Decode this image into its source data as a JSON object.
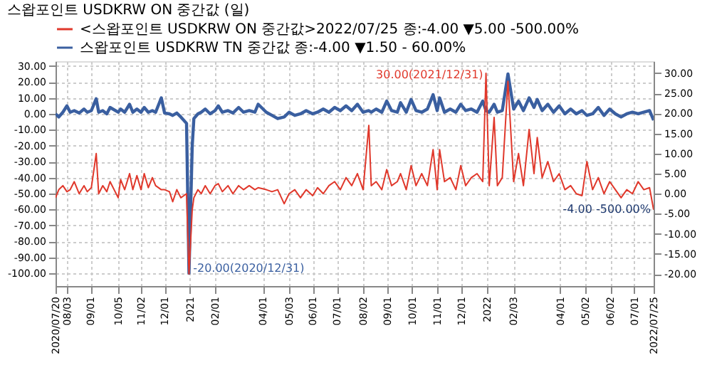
{
  "chart_data": {
    "type": "line",
    "title": "스왑포인트 USDKRW ON 중간값 (일)",
    "x": [
      "2020-07-20",
      "2020-07-24",
      "2020-07-29",
      "2020-08-03",
      "2020-08-07",
      "2020-08-12",
      "2020-08-18",
      "2020-08-24",
      "2020-08-28",
      "2020-09-02",
      "2020-09-08",
      "2020-09-11",
      "2020-09-16",
      "2020-09-21",
      "2020-09-25",
      "2020-10-05",
      "2020-10-08",
      "2020-10-13",
      "2020-10-19",
      "2020-10-23",
      "2020-10-28",
      "2020-11-02",
      "2020-11-06",
      "2020-11-11",
      "2020-11-16",
      "2020-11-20",
      "2020-11-27",
      "2020-12-01",
      "2020-12-07",
      "2020-12-11",
      "2020-12-16",
      "2020-12-21",
      "2020-12-28",
      "2020-12-31",
      "2021-01-04",
      "2021-01-06",
      "2021-01-11",
      "2021-01-15",
      "2021-01-20",
      "2021-01-26",
      "2021-02-01",
      "2021-02-05",
      "2021-02-10",
      "2021-02-17",
      "2021-02-23",
      "2021-03-02",
      "2021-03-08",
      "2021-03-15",
      "2021-03-22",
      "2021-03-26",
      "2021-04-05",
      "2021-04-12",
      "2021-04-19",
      "2021-04-27",
      "2021-05-03",
      "2021-05-10",
      "2021-05-17",
      "2021-05-24",
      "2021-06-01",
      "2021-06-07",
      "2021-06-14",
      "2021-06-21",
      "2021-06-28",
      "2021-07-05",
      "2021-07-12",
      "2021-07-19",
      "2021-07-26",
      "2021-08-02",
      "2021-08-09",
      "2021-08-12",
      "2021-08-18",
      "2021-08-25",
      "2021-08-31",
      "2021-09-06",
      "2021-09-13",
      "2021-09-17",
      "2021-09-24",
      "2021-09-30",
      "2021-10-06",
      "2021-10-13",
      "2021-10-20",
      "2021-10-27",
      "2021-11-01",
      "2021-11-04",
      "2021-11-10",
      "2021-11-17",
      "2021-11-24",
      "2021-11-30",
      "2021-12-06",
      "2021-12-13",
      "2021-12-20",
      "2021-12-27",
      "2021-12-31",
      "2022-01-04",
      "2022-01-10",
      "2022-01-14",
      "2022-01-20",
      "2022-01-27",
      "2022-02-03",
      "2022-02-09",
      "2022-02-15",
      "2022-02-22",
      "2022-02-28",
      "2022-03-04",
      "2022-03-10",
      "2022-03-17",
      "2022-03-24",
      "2022-03-31",
      "2022-04-07",
      "2022-04-14",
      "2022-04-21",
      "2022-04-28",
      "2022-05-04",
      "2022-05-11",
      "2022-05-18",
      "2022-05-25",
      "2022-06-01",
      "2022-06-08",
      "2022-06-15",
      "2022-06-22",
      "2022-06-29",
      "2022-07-06",
      "2022-07-13",
      "2022-07-20",
      "2022-07-25"
    ],
    "series": [
      {
        "name": "<스왑포인트 USDKRW ON 중간값>2022/07/25 종:-4.00 ▼5.00 -500.00%",
        "color": "#e0382b",
        "axis": "y2",
        "values": [
          -1,
          1,
          2,
          0.5,
          1,
          3,
          0,
          2,
          0.5,
          1.5,
          10,
          0,
          2,
          0.5,
          3,
          -1,
          3.5,
          1,
          5,
          1,
          4.5,
          1,
          5,
          1.5,
          4,
          2,
          1,
          1,
          0.5,
          -2,
          1,
          -1,
          0,
          -20,
          -4,
          -1,
          1,
          0,
          2,
          0,
          2,
          2.5,
          0.5,
          2,
          0,
          2,
          1,
          2,
          1,
          1.5,
          1,
          0.5,
          1,
          -2.5,
          0,
          1,
          -1,
          1,
          -0.5,
          1.5,
          0,
          2,
          3,
          1,
          4,
          2,
          5,
          1,
          17,
          2,
          3,
          1,
          6,
          2,
          3,
          5,
          1,
          7,
          2,
          5,
          2,
          11,
          1,
          11,
          3,
          4,
          1,
          7,
          2,
          4,
          5,
          3,
          30,
          2,
          19,
          2,
          4,
          28,
          3,
          10,
          2,
          16,
          5,
          14,
          4,
          8,
          3,
          5,
          1,
          2,
          0,
          -0.5,
          8,
          1,
          4,
          0,
          3,
          1,
          -1,
          1,
          0,
          3,
          1,
          1.5,
          -4
        ]
      },
      {
        "name": "스왑포인트 USDKRW TN 중간값 종:-4.00 ▼1.50 - 60.00%",
        "color": "#3a5fa0",
        "axis": "y",
        "values": [
          0,
          -2,
          1,
          5,
          1,
          2,
          0.5,
          3,
          1,
          2,
          9.5,
          1,
          2,
          0,
          4,
          1,
          3,
          1,
          6,
          1,
          3,
          1,
          4,
          1,
          2,
          1,
          10,
          0.5,
          0,
          -1,
          0.5,
          -2,
          -6,
          -100,
          -20,
          -3,
          0,
          1,
          3,
          0,
          2,
          5,
          1,
          2,
          0.5,
          4,
          1,
          2,
          1,
          6,
          1,
          -1,
          -3,
          -2,
          1,
          -1,
          0,
          2,
          0,
          1,
          3,
          1,
          4,
          2,
          5,
          2,
          6,
          1,
          2,
          1,
          3,
          1,
          8,
          2,
          1,
          7,
          1,
          9,
          2,
          1,
          3,
          12,
          2,
          10,
          1,
          3,
          1,
          6,
          2,
          3,
          1,
          8,
          2,
          1,
          6,
          1,
          2,
          25,
          3,
          8,
          2,
          10,
          4,
          9,
          2,
          6,
          1,
          5,
          0,
          3,
          0,
          2,
          -1,
          0,
          4,
          -1,
          3,
          0,
          -2,
          0,
          1,
          0,
          1,
          2,
          -4
        ]
      }
    ],
    "xlim": [
      "2020-07-20",
      "2022-07-25"
    ],
    "xticks": [
      {
        "value": "2020-07-20",
        "label": "2020/07/20"
      },
      {
        "value": "2020-08-03",
        "label": "08/03"
      },
      {
        "value": "2020-09-01",
        "label": "09/01"
      },
      {
        "value": "2020-10-05",
        "label": "10/05"
      },
      {
        "value": "2020-11-02",
        "label": "11/02"
      },
      {
        "value": "2020-12-01",
        "label": "12/01"
      },
      {
        "value": "2021-01-01",
        "label": "2021"
      },
      {
        "value": "2021-02-01",
        "label": "02/01"
      },
      {
        "value": "2021-04-01",
        "label": "04/01"
      },
      {
        "value": "2021-05-03",
        "label": "05/03"
      },
      {
        "value": "2021-06-01",
        "label": "06/01"
      },
      {
        "value": "2021-07-01",
        "label": "07/01"
      },
      {
        "value": "2021-08-02",
        "label": "08/02"
      },
      {
        "value": "2021-09-01",
        "label": "09/01"
      },
      {
        "value": "2021-10-01",
        "label": "10/01"
      },
      {
        "value": "2021-11-01",
        "label": "11/01"
      },
      {
        "value": "2021-12-01",
        "label": "12/01"
      },
      {
        "value": "2022-01-01",
        "label": "2022"
      },
      {
        "value": "2022-02-03",
        "label": "02/03"
      },
      {
        "value": "2022-04-01",
        "label": "04/01"
      },
      {
        "value": "2022-05-02",
        "label": "05/02"
      },
      {
        "value": "2022-06-02",
        "label": "06/02"
      },
      {
        "value": "2022-07-01",
        "label": "07/01"
      },
      {
        "value": "2022-07-25",
        "label": "2022/07/25"
      }
    ],
    "ylim": [
      -108,
      33
    ],
    "yticks": [
      {
        "value": -100,
        "label": "-100.00"
      },
      {
        "value": -90,
        "label": "-90.00"
      },
      {
        "value": -80,
        "label": "-80.00"
      },
      {
        "value": -70,
        "label": "-70.00"
      },
      {
        "value": -60,
        "label": "-60.00"
      },
      {
        "value": -50,
        "label": "-50.00"
      },
      {
        "value": -40,
        "label": "-40.00"
      },
      {
        "value": -30,
        "label": "-30.00"
      },
      {
        "value": -20,
        "label": "-20.00"
      },
      {
        "value": -10,
        "label": "-10.00"
      },
      {
        "value": 0,
        "label": "0.00"
      },
      {
        "value": 10,
        "label": "10.00"
      },
      {
        "value": 20,
        "label": "20.00"
      },
      {
        "value": 30,
        "label": "30.00"
      }
    ],
    "y2lim": [
      -23,
      33
    ],
    "y2ticks": [
      {
        "value": -20,
        "label": "-20.00"
      },
      {
        "value": -15,
        "label": "-15.00"
      },
      {
        "value": -10,
        "label": "-10.00"
      },
      {
        "value": -5,
        "label": "-5.00"
      },
      {
        "value": 0,
        "label": "0.00"
      },
      {
        "value": 5,
        "label": "5.00"
      },
      {
        "value": 10,
        "label": "10.00"
      },
      {
        "value": 15,
        "label": "15.00"
      },
      {
        "value": 20,
        "label": "20.00"
      },
      {
        "value": 25,
        "label": "25.00"
      },
      {
        "value": 30,
        "label": "30.00"
      }
    ],
    "grid": true,
    "legend": "top",
    "annotations": [
      "30.00(2021/12/31)",
      "-20.00(2020/12/31)",
      "-4.00 -500.00%"
    ]
  }
}
